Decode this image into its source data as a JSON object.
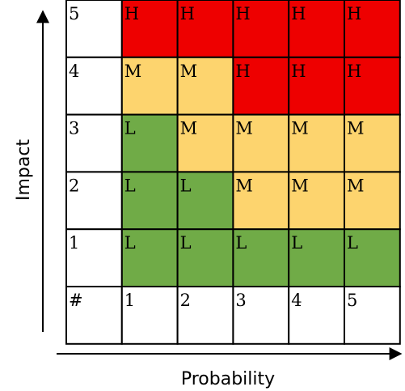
{
  "chart_data": {
    "type": "heatmap",
    "xlabel": "Probability",
    "ylabel": "Impact",
    "corner_label": "#",
    "x_categories": [
      "1",
      "2",
      "3",
      "4",
      "5"
    ],
    "y_categories": [
      "5",
      "4",
      "3",
      "2",
      "1"
    ],
    "cells": [
      [
        "H",
        "H",
        "H",
        "H",
        "H"
      ],
      [
        "M",
        "M",
        "H",
        "H",
        "H"
      ],
      [
        "L",
        "M",
        "M",
        "M",
        "M"
      ],
      [
        "L",
        "L",
        "M",
        "M",
        "M"
      ],
      [
        "L",
        "L",
        "L",
        "L",
        "L"
      ]
    ],
    "level_colors": {
      "H": "#ee0000",
      "M": "#fdd46e",
      "L": "#70ab47"
    }
  }
}
